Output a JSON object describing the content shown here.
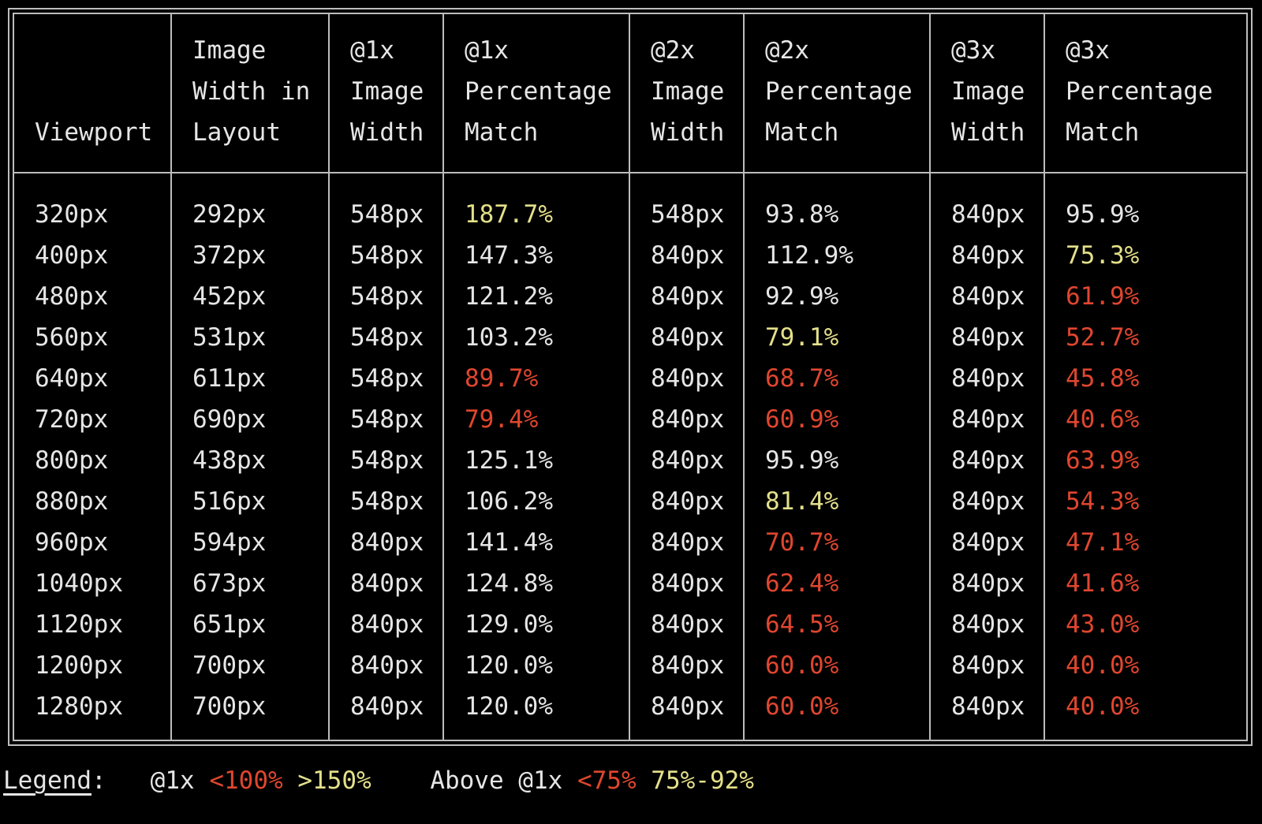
{
  "colors": {
    "background": "#000000",
    "text": "#e6e6e6",
    "border": "#bdbdbd",
    "yellow": "#e4e08a",
    "red": "#e0462f"
  },
  "table": {
    "headers": [
      [
        "Viewport"
      ],
      [
        "Image",
        "Width in",
        "Layout"
      ],
      [
        "@1x",
        "Image",
        "Width"
      ],
      [
        "@1x",
        "Percentage",
        "Match"
      ],
      [
        "@2x",
        "Image",
        "Width"
      ],
      [
        "@2x",
        "Percentage",
        "Match"
      ],
      [
        "@3x",
        "Image",
        "Width"
      ],
      [
        "@3x",
        "Percentage",
        "Match"
      ]
    ],
    "columns": [
      {
        "values": [
          "320px",
          "400px",
          "480px",
          "560px",
          "640px",
          "720px",
          "800px",
          "880px",
          "960px",
          "1040px",
          "1120px",
          "1200px",
          "1280px"
        ],
        "colors": [
          "white",
          "white",
          "white",
          "white",
          "white",
          "white",
          "white",
          "white",
          "white",
          "white",
          "white",
          "white",
          "white"
        ]
      },
      {
        "values": [
          "292px",
          "372px",
          "452px",
          "531px",
          "611px",
          "690px",
          "438px",
          "516px",
          "594px",
          "673px",
          "651px",
          "700px",
          "700px"
        ],
        "colors": [
          "white",
          "white",
          "white",
          "white",
          "white",
          "white",
          "white",
          "white",
          "white",
          "white",
          "white",
          "white",
          "white"
        ]
      },
      {
        "values": [
          "548px",
          "548px",
          "548px",
          "548px",
          "548px",
          "548px",
          "548px",
          "548px",
          "840px",
          "840px",
          "840px",
          "840px",
          "840px"
        ],
        "colors": [
          "white",
          "white",
          "white",
          "white",
          "white",
          "white",
          "white",
          "white",
          "white",
          "white",
          "white",
          "white",
          "white"
        ]
      },
      {
        "values": [
          "187.7%",
          "147.3%",
          "121.2%",
          "103.2%",
          "89.7%",
          "79.4%",
          "125.1%",
          "106.2%",
          "141.4%",
          "124.8%",
          "129.0%",
          "120.0%",
          "120.0%"
        ],
        "colors": [
          "yellow",
          "white",
          "white",
          "white",
          "red",
          "red",
          "white",
          "white",
          "white",
          "white",
          "white",
          "white",
          "white"
        ]
      },
      {
        "values": [
          "548px",
          "840px",
          "840px",
          "840px",
          "840px",
          "840px",
          "840px",
          "840px",
          "840px",
          "840px",
          "840px",
          "840px",
          "840px"
        ],
        "colors": [
          "white",
          "white",
          "white",
          "white",
          "white",
          "white",
          "white",
          "white",
          "white",
          "white",
          "white",
          "white",
          "white"
        ]
      },
      {
        "values": [
          "93.8%",
          "112.9%",
          "92.9%",
          "79.1%",
          "68.7%",
          "60.9%",
          "95.9%",
          "81.4%",
          "70.7%",
          "62.4%",
          "64.5%",
          "60.0%",
          "60.0%"
        ],
        "colors": [
          "white",
          "white",
          "white",
          "yellow",
          "red",
          "red",
          "white",
          "yellow",
          "red",
          "red",
          "red",
          "red",
          "red"
        ]
      },
      {
        "values": [
          "840px",
          "840px",
          "840px",
          "840px",
          "840px",
          "840px",
          "840px",
          "840px",
          "840px",
          "840px",
          "840px",
          "840px",
          "840px"
        ],
        "colors": [
          "white",
          "white",
          "white",
          "white",
          "white",
          "white",
          "white",
          "white",
          "white",
          "white",
          "white",
          "white",
          "white"
        ]
      },
      {
        "values": [
          "95.9%",
          "75.3%",
          "61.9%",
          "52.7%",
          "45.8%",
          "40.6%",
          "63.9%",
          "54.3%",
          "47.1%",
          "41.6%",
          "43.0%",
          "40.0%",
          "40.0%"
        ],
        "colors": [
          "white",
          "yellow",
          "red",
          "red",
          "red",
          "red",
          "red",
          "red",
          "red",
          "red",
          "red",
          "red",
          "red"
        ]
      }
    ]
  },
  "legend": {
    "label": "Legend",
    "colon": ":",
    "group1": "@1x",
    "group1_red": "<100%",
    "group1_yellow": ">150%",
    "group2": "Above @1x",
    "group2_red": "<75%",
    "group2_yellow": "75%-92%"
  }
}
